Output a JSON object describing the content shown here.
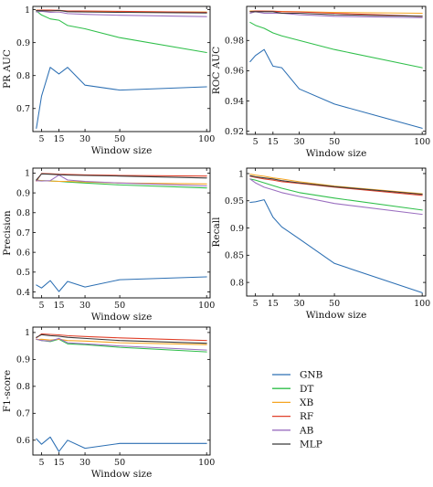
{
  "chart_data": [
    {
      "type": "line",
      "xlabel": "Window size",
      "ylabel": "PR AUC",
      "xticks": [
        5,
        15,
        30,
        50,
        100
      ],
      "yticks": [
        0.7,
        0.8,
        0.9,
        1.0
      ],
      "ylim": [
        0.63,
        1.01
      ],
      "x": [
        2,
        5,
        10,
        15,
        20,
        30,
        50,
        100
      ],
      "series": [
        {
          "name": "GNB",
          "values": [
            0.64,
            0.738,
            0.825,
            0.805,
            0.825,
            0.771,
            0.756,
            0.766
          ]
        },
        {
          "name": "DT",
          "values": [
            0.996,
            0.984,
            0.972,
            0.968,
            0.952,
            0.942,
            0.915,
            0.87
          ]
        },
        {
          "name": "XB",
          "values": [
            0.999,
            0.998,
            0.997,
            0.997,
            0.995,
            0.995,
            0.994,
            0.993
          ]
        },
        {
          "name": "RF",
          "values": [
            0.998,
            0.999,
            0.999,
            0.998,
            0.996,
            0.996,
            0.995,
            0.992
          ]
        },
        {
          "name": "AB",
          "values": [
            0.993,
            0.995,
            0.992,
            0.993,
            0.988,
            0.986,
            0.983,
            0.979
          ]
        },
        {
          "name": "MLP",
          "values": [
            0.997,
            0.997,
            0.996,
            0.998,
            0.994,
            0.993,
            0.992,
            0.99
          ]
        }
      ]
    },
    {
      "type": "line",
      "xlabel": "Window size",
      "ylabel": "ROC AUC",
      "xticks": [
        5,
        15,
        30,
        50,
        100
      ],
      "yticks": [
        0.92,
        0.94,
        0.96,
        0.98
      ],
      "ylim": [
        0.918,
        1.0025
      ],
      "x": [
        2,
        5,
        10,
        15,
        20,
        30,
        50,
        100
      ],
      "series": [
        {
          "name": "GNB",
          "values": [
            0.966,
            0.97,
            0.974,
            0.963,
            0.962,
            0.948,
            0.938,
            0.922
          ]
        },
        {
          "name": "DT",
          "values": [
            0.992,
            0.99,
            0.988,
            0.985,
            0.983,
            0.98,
            0.974,
            0.962
          ]
        },
        {
          "name": "XB",
          "values": [
            0.9995,
            0.9995,
            0.9994,
            0.9993,
            0.9992,
            0.999,
            0.9985,
            0.998
          ]
        },
        {
          "name": "RF",
          "values": [
            0.999,
            0.9995,
            0.9994,
            0.9993,
            0.999,
            0.9988,
            0.998,
            0.996
          ]
        },
        {
          "name": "AB",
          "values": [
            0.998,
            0.999,
            0.998,
            0.998,
            0.998,
            0.997,
            0.996,
            0.995
          ]
        },
        {
          "name": "MLP",
          "values": [
            0.999,
            0.999,
            0.999,
            0.999,
            0.998,
            0.998,
            0.997,
            0.996
          ]
        }
      ]
    },
    {
      "type": "line",
      "xlabel": "Window size",
      "ylabel": "Precision",
      "xticks": [
        5,
        15,
        30,
        50,
        100
      ],
      "yticks": [
        0.4,
        0.5,
        0.6,
        0.7,
        0.8,
        0.9,
        1.0
      ],
      "ylim": [
        0.37,
        1.025
      ],
      "x": [
        2,
        5,
        10,
        15,
        20,
        30,
        50,
        100
      ],
      "series": [
        {
          "name": "GNB",
          "values": [
            0.435,
            0.42,
            0.457,
            0.402,
            0.453,
            0.425,
            0.462,
            0.476
          ]
        },
        {
          "name": "DT",
          "values": [
            0.965,
            0.962,
            0.96,
            0.958,
            0.955,
            0.95,
            0.94,
            0.925
          ]
        },
        {
          "name": "XB",
          "values": [
            0.962,
            0.962,
            0.96,
            0.958,
            0.958,
            0.955,
            0.95,
            0.945
          ]
        },
        {
          "name": "RF",
          "values": [
            0.96,
            0.998,
            0.997,
            0.994,
            0.993,
            0.991,
            0.988,
            0.985
          ]
        },
        {
          "name": "AB",
          "values": [
            0.962,
            0.96,
            0.962,
            0.99,
            0.965,
            0.958,
            0.95,
            0.935
          ]
        },
        {
          "name": "MLP",
          "values": [
            0.965,
            0.996,
            0.994,
            0.992,
            0.99,
            0.988,
            0.985,
            0.975
          ]
        }
      ]
    },
    {
      "type": "line",
      "xlabel": "Window size",
      "ylabel": "Recall",
      "xticks": [
        5,
        15,
        30,
        50,
        100
      ],
      "yticks": [
        0.8,
        0.85,
        0.9,
        0.95,
        1.0
      ],
      "ylim": [
        0.775,
        1.01
      ],
      "x": [
        2,
        5,
        10,
        15,
        20,
        30,
        50,
        100
      ],
      "series": [
        {
          "name": "GNB",
          "values": [
            0.947,
            0.948,
            0.952,
            0.92,
            0.902,
            0.88,
            0.835,
            0.781
          ]
        },
        {
          "name": "DT",
          "values": [
            0.99,
            0.988,
            0.983,
            0.978,
            0.973,
            0.965,
            0.955,
            0.933
          ]
        },
        {
          "name": "XB",
          "values": [
            0.999,
            0.997,
            0.995,
            0.992,
            0.99,
            0.985,
            0.977,
            0.963
          ]
        },
        {
          "name": "RF",
          "values": [
            0.995,
            0.993,
            0.99,
            0.988,
            0.985,
            0.982,
            0.975,
            0.96
          ]
        },
        {
          "name": "AB",
          "values": [
            0.99,
            0.983,
            0.975,
            0.97,
            0.965,
            0.958,
            0.945,
            0.925
          ]
        },
        {
          "name": "MLP",
          "values": [
            0.996,
            0.994,
            0.992,
            0.99,
            0.987,
            0.983,
            0.976,
            0.962
          ]
        }
      ]
    },
    {
      "type": "line",
      "xlabel": "Window size",
      "ylabel": "F1-score",
      "xticks": [
        5,
        15,
        30,
        50,
        100
      ],
      "yticks": [
        0.6,
        0.7,
        0.8,
        0.9,
        1.0
      ],
      "ylim": [
        0.545,
        1.02
      ],
      "x": [
        2,
        5,
        10,
        15,
        20,
        30,
        50,
        100
      ],
      "series": [
        {
          "name": "GNB",
          "values": [
            0.605,
            0.585,
            0.612,
            0.558,
            0.6,
            0.57,
            0.588,
            0.588
          ]
        },
        {
          "name": "DT",
          "values": [
            0.975,
            0.97,
            0.966,
            0.975,
            0.958,
            0.955,
            0.945,
            0.928
          ]
        },
        {
          "name": "XB",
          "values": [
            0.974,
            0.975,
            0.972,
            0.975,
            0.97,
            0.968,
            0.962,
            0.955
          ]
        },
        {
          "name": "RF",
          "values": [
            0.98,
            0.995,
            0.993,
            0.991,
            0.988,
            0.985,
            0.98,
            0.97
          ]
        },
        {
          "name": "AB",
          "values": [
            0.975,
            0.97,
            0.968,
            0.978,
            0.962,
            0.958,
            0.95,
            0.935
          ]
        },
        {
          "name": "MLP",
          "values": [
            0.982,
            0.992,
            0.988,
            0.986,
            0.982,
            0.978,
            0.97,
            0.96
          ]
        }
      ]
    }
  ],
  "legend": [
    {
      "name": "GNB",
      "color": "#2c6fb3"
    },
    {
      "name": "DT",
      "color": "#2fbf4a"
    },
    {
      "name": "XB",
      "color": "#f5a623"
    },
    {
      "name": "RF",
      "color": "#e0402a"
    },
    {
      "name": "AB",
      "color": "#9b6fc0"
    },
    {
      "name": "MLP",
      "color": "#3a3a3a"
    }
  ]
}
